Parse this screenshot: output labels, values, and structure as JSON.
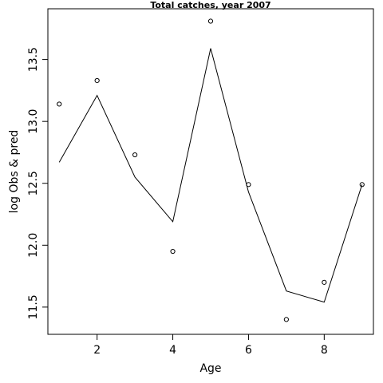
{
  "chart_data": {
    "type": "line",
    "title": "Total catches, year 2007",
    "xlabel": "Age",
    "ylabel": "log Obs & pred",
    "xlim": [
      0.7,
      9.3
    ],
    "ylim": [
      11.28,
      13.91
    ],
    "x_ticks": [
      2,
      4,
      6,
      8
    ],
    "x_tick_labels": [
      "2",
      "4",
      "6",
      "8"
    ],
    "y_ticks": [
      11.5,
      12.0,
      12.5,
      13.0,
      13.5
    ],
    "y_tick_labels": [
      "11.5",
      "12.0",
      "12.5",
      "13.0",
      "13.5"
    ],
    "grid": false,
    "series": [
      {
        "kind": "points",
        "marker": "open-circle",
        "x": [
          1,
          2,
          3,
          4,
          5,
          6,
          7,
          8,
          9
        ],
        "y": [
          13.14,
          13.33,
          12.73,
          11.95,
          13.81,
          12.49,
          11.4,
          11.7,
          12.49
        ]
      },
      {
        "kind": "line",
        "x": [
          1,
          2,
          3,
          4,
          5,
          6,
          7,
          8,
          9
        ],
        "y": [
          12.67,
          13.21,
          12.55,
          12.19,
          13.59,
          12.43,
          11.63,
          11.54,
          12.49
        ]
      }
    ]
  }
}
